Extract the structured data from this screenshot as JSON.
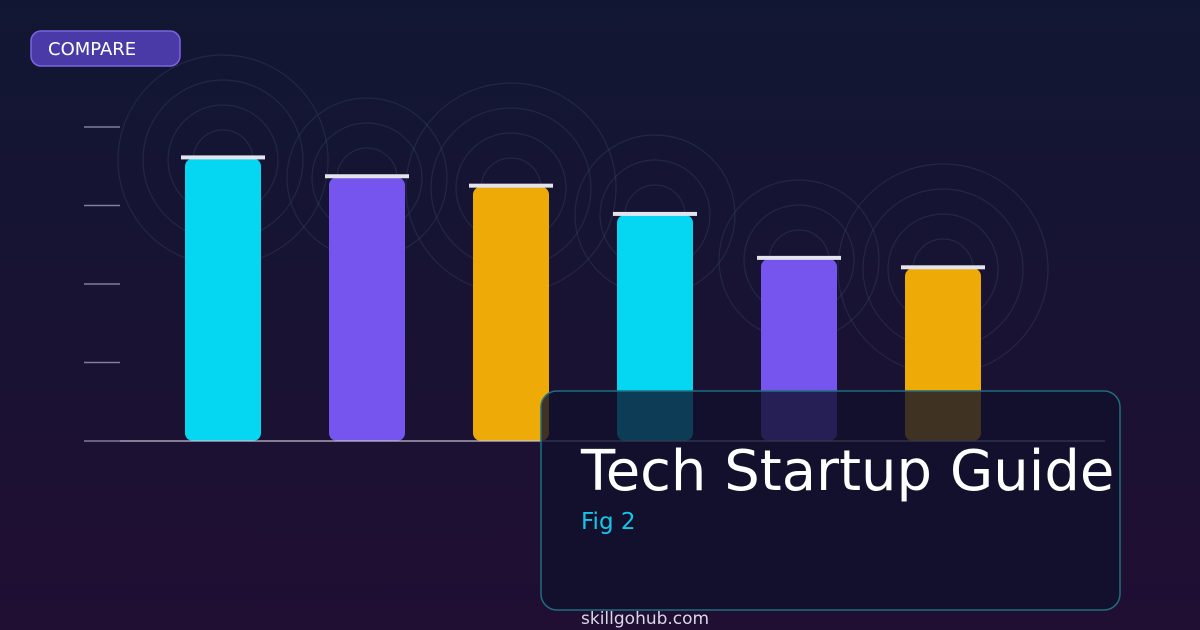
{
  "badge": "COMPARE",
  "card": {
    "title": "Tech Startup Guide",
    "subtitle": "Fig 2"
  },
  "footer": "skillgohub.com",
  "chart_data": {
    "type": "bar",
    "values": [
      90,
      84,
      81,
      72,
      58,
      55
    ],
    "colors": [
      "#05d6f2",
      "#7655ee",
      "#eeaa06",
      "#05d6f2",
      "#7655ee",
      "#eeaa06"
    ],
    "ylim": [
      0,
      100
    ],
    "yticks": [
      0,
      25,
      50,
      75,
      100
    ]
  }
}
